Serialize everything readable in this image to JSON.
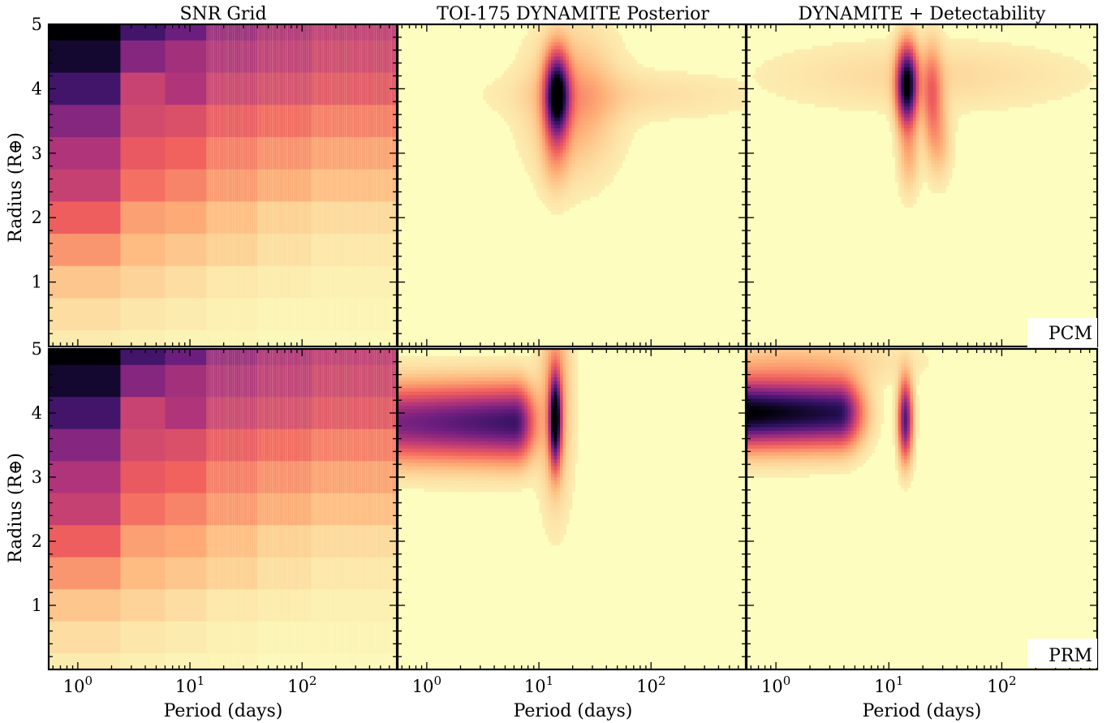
{
  "figure": {
    "column_titles": [
      "SNR Grid",
      "TOI-175 DYNAMITE Posterior",
      "DYNAMITE + Detectability"
    ],
    "row_labels": [
      "PCM",
      "PRM"
    ],
    "xlabel": "Period (days)",
    "ylabel": "Radius (R⊕)",
    "colormap": "magma_r",
    "colormap_stops": [
      "#000004",
      "#2c115f",
      "#721f81",
      "#b73779",
      "#f1605d",
      "#feb078",
      "#fcfdbf"
    ]
  },
  "chart_data": {
    "type": "heatmap",
    "layout": "2x3 grid, shared axes",
    "x_scale": "log",
    "xlim": [
      0.55,
      700
    ],
    "ylim": [
      0,
      5
    ],
    "x_ticks": [
      {
        "value": 1,
        "label": "10^0"
      },
      {
        "value": 10,
        "label": "10^1"
      },
      {
        "value": 100,
        "label": "10^2"
      }
    ],
    "y_ticks": [
      1,
      2,
      3,
      4,
      5
    ],
    "snr_grid": {
      "radius_bins": [
        [
          4.75,
          5.0
        ],
        [
          4.25,
          4.75
        ],
        [
          3.75,
          4.25
        ],
        [
          3.25,
          3.75
        ],
        [
          2.75,
          3.25
        ],
        [
          2.25,
          2.75
        ],
        [
          1.75,
          2.25
        ],
        [
          1.25,
          1.75
        ],
        [
          0.75,
          1.25
        ],
        [
          0.25,
          0.75
        ],
        [
          0.0,
          0.25
        ]
      ],
      "period_edges": [
        0.55,
        2.4,
        6.0,
        14.0,
        40.0,
        120.0,
        700.0
      ],
      "values": [
        [
          1.0,
          0.78,
          0.68,
          0.58,
          0.52,
          0.48
        ],
        [
          0.92,
          0.62,
          0.55,
          0.52,
          0.48,
          0.44
        ],
        [
          0.78,
          0.45,
          0.52,
          0.45,
          0.42,
          0.38
        ],
        [
          0.62,
          0.42,
          0.4,
          0.36,
          0.32,
          0.28
        ],
        [
          0.52,
          0.36,
          0.33,
          0.28,
          0.24,
          0.2
        ],
        [
          0.46,
          0.3,
          0.26,
          0.22,
          0.18,
          0.14
        ],
        [
          0.34,
          0.2,
          0.18,
          0.14,
          0.1,
          0.08
        ],
        [
          0.22,
          0.14,
          0.12,
          0.1,
          0.07,
          0.05
        ],
        [
          0.12,
          0.09,
          0.07,
          0.05,
          0.04,
          0.03
        ],
        [
          0.07,
          0.05,
          0.04,
          0.03,
          0.02,
          0.02
        ],
        [
          0.04,
          0.03,
          0.02,
          0.02,
          0.01,
          0.01
        ]
      ]
    },
    "panels": [
      {
        "row": "PCM",
        "column": "SNR Grid",
        "source": "snr_grid"
      },
      {
        "row": "PCM",
        "column": "TOI-175 DYNAMITE Posterior",
        "background": 0.02,
        "peaks": [
          {
            "period": 14.5,
            "radius": 3.9,
            "amp": 1.0,
            "sigma_logp": 0.07,
            "sigma_r": 0.42
          },
          {
            "period": 20,
            "radius": 3.8,
            "amp": 0.18,
            "sigma_logp": 0.25,
            "sigma_r": 0.7
          },
          {
            "period": 14,
            "radius": 3.0,
            "amp": 0.12,
            "sigma_logp": 0.08,
            "sigma_r": 0.4
          },
          {
            "period": 60,
            "radius": 3.9,
            "amp": 0.05,
            "sigma_logp": 0.8,
            "sigma_r": 0.25
          }
        ]
      },
      {
        "row": "PCM",
        "column": "DYNAMITE + Detectability",
        "background": 0.02,
        "peaks": [
          {
            "period": 14.5,
            "radius": 4.05,
            "amp": 1.0,
            "sigma_logp": 0.06,
            "sigma_r": 0.4
          },
          {
            "period": 24,
            "radius": 3.9,
            "amp": 0.28,
            "sigma_logp": 0.06,
            "sigma_r": 0.5
          },
          {
            "period": 28,
            "radius": 3.2,
            "amp": 0.12,
            "sigma_logp": 0.07,
            "sigma_r": 0.4
          },
          {
            "period": 15,
            "radius": 3.0,
            "amp": 0.14,
            "sigma_logp": 0.06,
            "sigma_r": 0.4
          },
          {
            "period": 20,
            "radius": 4.2,
            "amp": 0.06,
            "sigma_logp": 0.9,
            "sigma_r": 0.35
          }
        ]
      },
      {
        "row": "PRM",
        "column": "SNR Grid",
        "source": "snr_grid"
      },
      {
        "row": "PRM",
        "column": "TOI-175 DYNAMITE Posterior",
        "background": 0.02,
        "bands": [
          {
            "p_min": 0.55,
            "p_max": 6.0,
            "radius": 3.85,
            "amp": 0.62,
            "amp_right": 0.78,
            "sigma_r": 0.38,
            "edge_sigma_logp": 0.12
          }
        ],
        "peaks": [
          {
            "period": 14.0,
            "radius": 3.9,
            "amp": 1.0,
            "sigma_logp": 0.035,
            "sigma_r": 0.45
          },
          {
            "period": 14.0,
            "radius": 4.2,
            "amp": 0.2,
            "sigma_logp": 0.09,
            "sigma_r": 1.0
          }
        ]
      },
      {
        "row": "PRM",
        "column": "DYNAMITE + Detectability",
        "background": 0.02,
        "bands": [
          {
            "p_min": 0.55,
            "p_max": 3.5,
            "radius": 4.0,
            "amp": 1.0,
            "amp_right": 0.85,
            "sigma_r": 0.34,
            "edge_sigma_logp": 0.14
          }
        ],
        "peaks": [
          {
            "period": 14.0,
            "radius": 3.9,
            "amp": 0.72,
            "sigma_logp": 0.04,
            "sigma_r": 0.4
          },
          {
            "period": 1.5,
            "radius": 4.8,
            "amp": 0.1,
            "sigma_logp": 0.6,
            "sigma_r": 0.25
          }
        ]
      }
    ]
  }
}
